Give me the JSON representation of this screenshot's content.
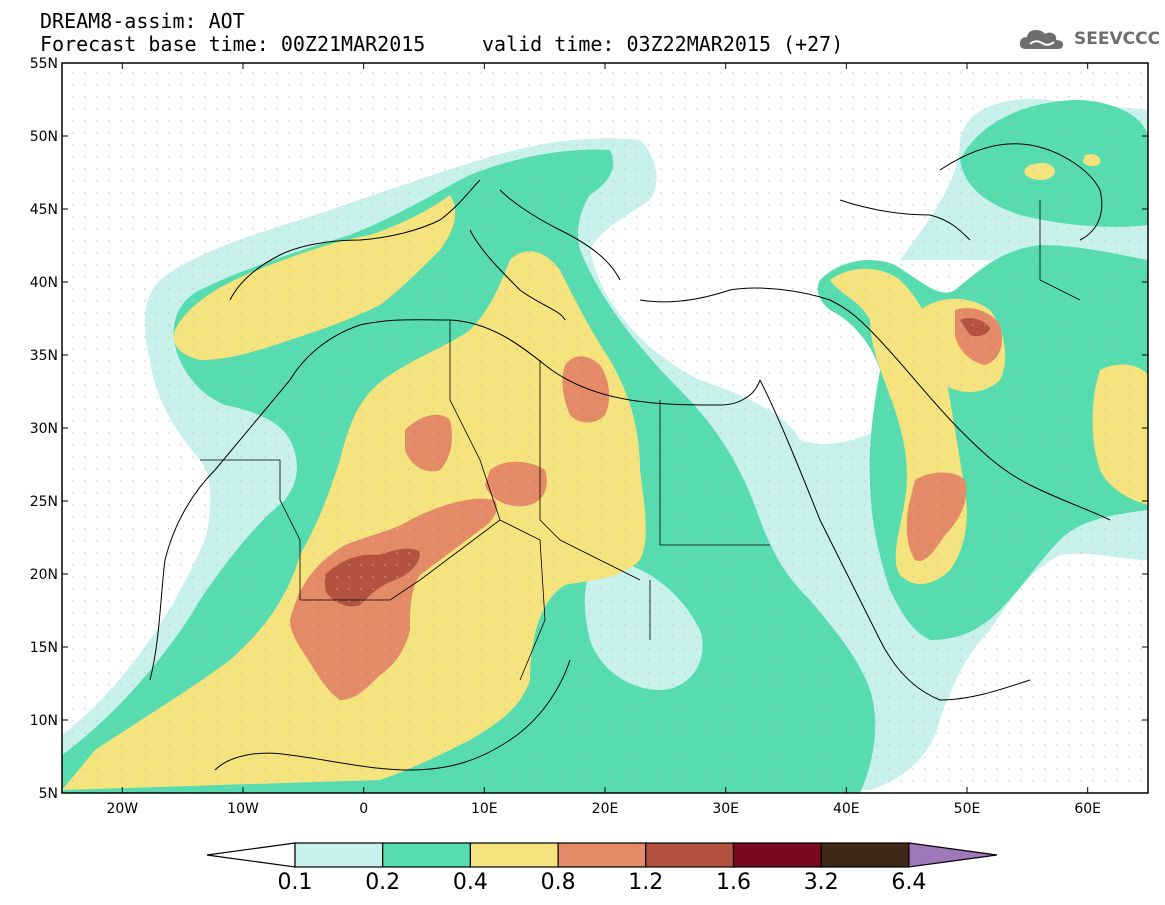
{
  "title": {
    "line1": "DREAM8-assim: AOT",
    "line2": "Forecast base time: 00Z21MAR2015",
    "valid": "valid time: 03Z22MAR2015 (+27)"
  },
  "logo": {
    "text": "SEEVCCC",
    "icon": "cloud-icon",
    "color": "#6e6e6e"
  },
  "map": {
    "lon_range": [
      -25,
      65
    ],
    "lat_range": [
      5,
      55
    ],
    "lat_labels": [
      "55N",
      "50N",
      "45N",
      "40N",
      "35N",
      "30N",
      "25N",
      "20N",
      "15N",
      "10N",
      "5N"
    ],
    "lon_labels": [
      "20W",
      "10W",
      "0",
      "10E",
      "20E",
      "30E",
      "40E",
      "50E",
      "60E"
    ]
  },
  "colorbar": {
    "labels": [
      "0.1",
      "0.2",
      "0.4",
      "0.8",
      "1.2",
      "1.6",
      "3.2",
      "6.4"
    ],
    "colors": [
      "#ffffff",
      "#c7f1ea",
      "#57dcb0",
      "#f5e37e",
      "#e48a66",
      "#b3533f",
      "#7a0a1e",
      "#402818",
      "#9e78b8"
    ]
  }
}
